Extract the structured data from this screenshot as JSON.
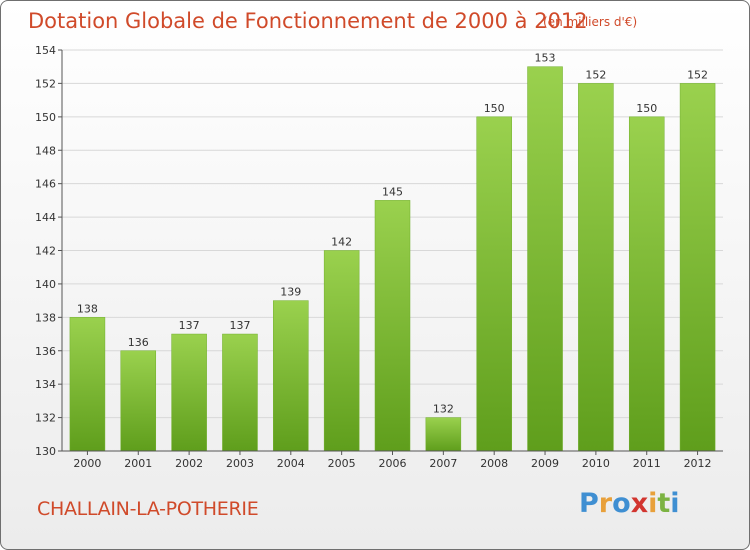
{
  "header": {
    "title": "Dotation Globale de Fonctionnement de 2000 à 2012",
    "unit": "(en milliers d'€)"
  },
  "footer": {
    "commune": "CHALLAIN-LA-POTHERIE",
    "brand": "Proxiti"
  },
  "colors": {
    "title": "#d04a2a",
    "bar_top": "#9ad14e",
    "bar_bottom": "#5f9e1c",
    "grid": "#d8d8d8",
    "axis": "#555555"
  },
  "chart_data": {
    "type": "bar",
    "title": "Dotation Globale de Fonctionnement de 2000 à 2012",
    "subtitle": "(en milliers d'€)",
    "categories": [
      "2000",
      "2001",
      "2002",
      "2003",
      "2004",
      "2005",
      "2006",
      "2007",
      "2008",
      "2009",
      "2010",
      "2011",
      "2012"
    ],
    "values": [
      138,
      136,
      137,
      137,
      139,
      142,
      145,
      132,
      150,
      153,
      152,
      150,
      152
    ],
    "ylim": [
      130,
      154
    ],
    "yticks": [
      130,
      132,
      134,
      136,
      138,
      140,
      142,
      144,
      146,
      148,
      150,
      152,
      154
    ],
    "xlabel": "",
    "ylabel": "",
    "grid": true,
    "data_labels": true
  }
}
